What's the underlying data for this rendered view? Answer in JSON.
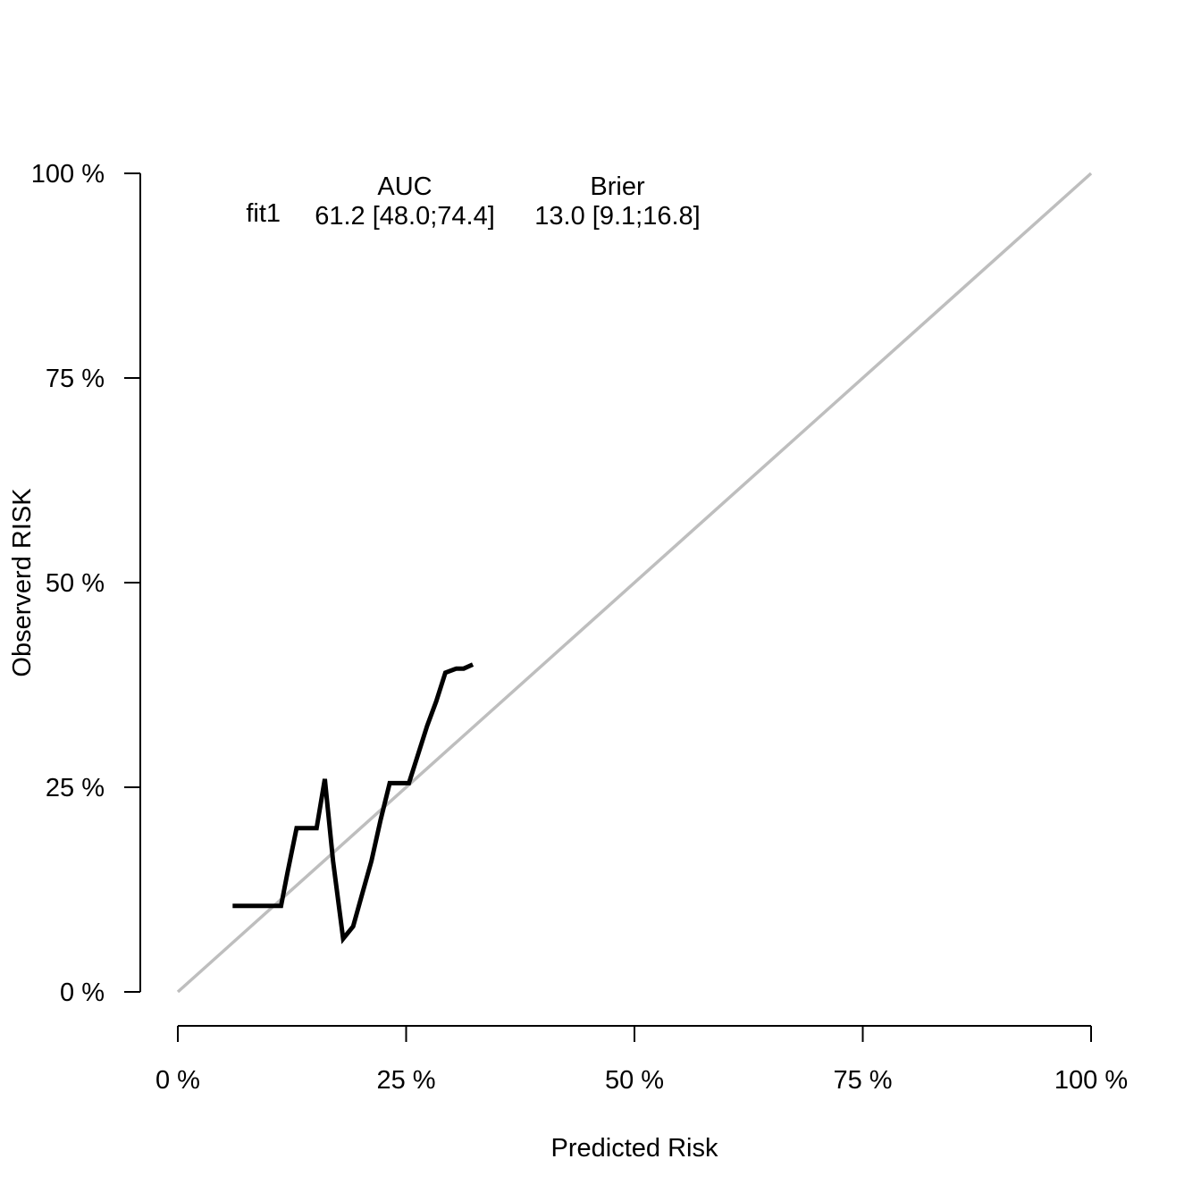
{
  "chart_data": {
    "type": "line",
    "xlabel": "Predicted Risk",
    "ylabel": "Observerd RISK",
    "xlim": [
      0,
      100
    ],
    "ylim": [
      0,
      100
    ],
    "x_ticks": [
      0,
      25,
      50,
      75,
      100
    ],
    "y_ticks": [
      0,
      25,
      50,
      75,
      100
    ],
    "x_tick_labels": [
      "0 %",
      "25 %",
      "50 %",
      "75 %",
      "100 %"
    ],
    "y_tick_labels": [
      "0 %",
      "25 %",
      "50 %",
      "75 %",
      "100 %"
    ],
    "grid": false,
    "reference_line": {
      "x": [
        0,
        100
      ],
      "y": [
        0,
        100
      ],
      "color": "#bebebe"
    },
    "series": [
      {
        "name": "fit1",
        "color": "#000000",
        "x": [
          6,
          7.5,
          9,
          10.5,
          11.3,
          12,
          13,
          14,
          15.2,
          16.1,
          17,
          18.1,
          19.2,
          20.2,
          21.2,
          22.2,
          23.2,
          24.2,
          25.3,
          26.3,
          27.3,
          28.3,
          29.3,
          30.5,
          31.3,
          32.3
        ],
        "y": [
          10.5,
          10.5,
          10.5,
          10.5,
          10.5,
          14.5,
          20,
          20,
          20,
          26,
          16,
          6.5,
          8,
          12,
          16,
          21,
          25.5,
          25.5,
          25.5,
          29,
          32.5,
          35.5,
          39,
          39.5,
          39.5,
          40
        ]
      }
    ],
    "legend": {
      "header": [
        "AUC",
        "Brier"
      ],
      "rows": [
        {
          "name": "fit1",
          "auc": "61.2 [48.0;74.4]",
          "brier": "13.0 [9.1;16.8]"
        }
      ]
    }
  }
}
